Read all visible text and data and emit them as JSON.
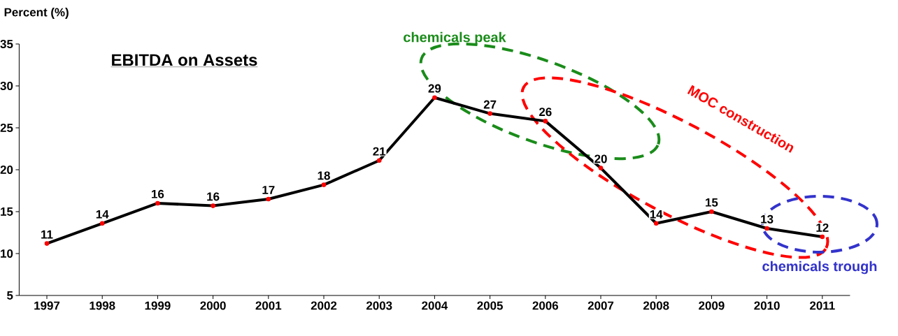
{
  "chart_data": {
    "type": "line",
    "title": "EBITDA on Assets",
    "ylabel": "Percent (%)",
    "categories": [
      "1997",
      "1998",
      "1999",
      "2000",
      "2001",
      "2002",
      "2003",
      "2004",
      "2005",
      "2006",
      "2007",
      "2008",
      "2009",
      "2010",
      "2011"
    ],
    "values": [
      11.2,
      13.6,
      16.0,
      15.7,
      16.5,
      18.2,
      21.1,
      28.6,
      26.7,
      25.8,
      20.2,
      13.6,
      15.0,
      13.0,
      12.0
    ],
    "value_labels": [
      "11",
      "14",
      "16",
      "16",
      "17",
      "18",
      "21",
      "29",
      "27",
      "26",
      "20",
      "14",
      "15",
      "13",
      "12"
    ],
    "color": "#000000",
    "marker": "circle",
    "line_style": "solid",
    "grid": false,
    "ylim": [
      5,
      35
    ],
    "yticks": [
      5,
      10,
      15,
      20,
      25,
      30,
      35
    ],
    "annotations": [
      "chemicals peak",
      "MOC construction",
      "chemicals trough"
    ]
  }
}
